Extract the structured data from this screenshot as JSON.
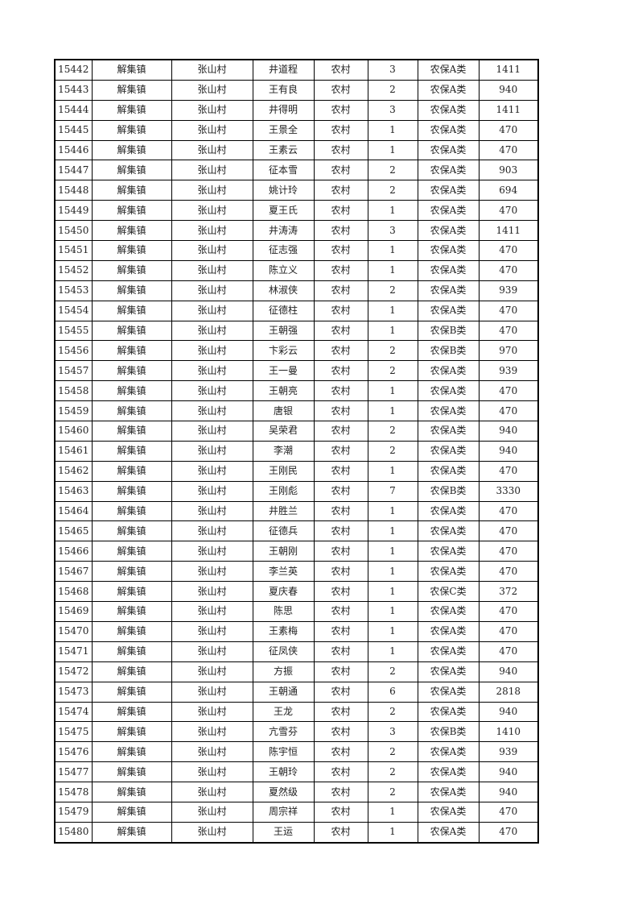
{
  "table": {
    "rows": [
      [
        "15442",
        "解集镇",
        "张山村",
        "井道程",
        "农村",
        "3",
        "农保A类",
        "1411"
      ],
      [
        "15443",
        "解集镇",
        "张山村",
        "王有良",
        "农村",
        "2",
        "农保A类",
        "940"
      ],
      [
        "15444",
        "解集镇",
        "张山村",
        "井得明",
        "农村",
        "3",
        "农保A类",
        "1411"
      ],
      [
        "15445",
        "解集镇",
        "张山村",
        "王景全",
        "农村",
        "1",
        "农保A类",
        "470"
      ],
      [
        "15446",
        "解集镇",
        "张山村",
        "王素云",
        "农村",
        "1",
        "农保A类",
        "470"
      ],
      [
        "15447",
        "解集镇",
        "张山村",
        "征本雪",
        "农村",
        "2",
        "农保A类",
        "903"
      ],
      [
        "15448",
        "解集镇",
        "张山村",
        "姚计玲",
        "农村",
        "2",
        "农保A类",
        "694"
      ],
      [
        "15449",
        "解集镇",
        "张山村",
        "夏王氏",
        "农村",
        "1",
        "农保A类",
        "470"
      ],
      [
        "15450",
        "解集镇",
        "张山村",
        "井涛涛",
        "农村",
        "3",
        "农保A类",
        "1411"
      ],
      [
        "15451",
        "解集镇",
        "张山村",
        "征志强",
        "农村",
        "1",
        "农保A类",
        "470"
      ],
      [
        "15452",
        "解集镇",
        "张山村",
        "陈立义",
        "农村",
        "1",
        "农保A类",
        "470"
      ],
      [
        "15453",
        "解集镇",
        "张山村",
        "林淑侠",
        "农村",
        "2",
        "农保A类",
        "939"
      ],
      [
        "15454",
        "解集镇",
        "张山村",
        "征德柱",
        "农村",
        "1",
        "农保A类",
        "470"
      ],
      [
        "15455",
        "解集镇",
        "张山村",
        "王朝强",
        "农村",
        "1",
        "农保B类",
        "470"
      ],
      [
        "15456",
        "解集镇",
        "张山村",
        "卞彩云",
        "农村",
        "2",
        "农保B类",
        "970"
      ],
      [
        "15457",
        "解集镇",
        "张山村",
        "王一曼",
        "农村",
        "2",
        "农保A类",
        "939"
      ],
      [
        "15458",
        "解集镇",
        "张山村",
        "王朝亮",
        "农村",
        "1",
        "农保A类",
        "470"
      ],
      [
        "15459",
        "解集镇",
        "张山村",
        "唐银",
        "农村",
        "1",
        "农保A类",
        "470"
      ],
      [
        "15460",
        "解集镇",
        "张山村",
        "吴荣君",
        "农村",
        "2",
        "农保A类",
        "940"
      ],
      [
        "15461",
        "解集镇",
        "张山村",
        "李潮",
        "农村",
        "2",
        "农保A类",
        "940"
      ],
      [
        "15462",
        "解集镇",
        "张山村",
        "王刚民",
        "农村",
        "1",
        "农保A类",
        "470"
      ],
      [
        "15463",
        "解集镇",
        "张山村",
        "王刚彪",
        "农村",
        "7",
        "农保B类",
        "3330"
      ],
      [
        "15464",
        "解集镇",
        "张山村",
        "井胜兰",
        "农村",
        "1",
        "农保A类",
        "470"
      ],
      [
        "15465",
        "解集镇",
        "张山村",
        "征德兵",
        "农村",
        "1",
        "农保A类",
        "470"
      ],
      [
        "15466",
        "解集镇",
        "张山村",
        "王朝刚",
        "农村",
        "1",
        "农保A类",
        "470"
      ],
      [
        "15467",
        "解集镇",
        "张山村",
        "李兰英",
        "农村",
        "1",
        "农保A类",
        "470"
      ],
      [
        "15468",
        "解集镇",
        "张山村",
        "夏庆春",
        "农村",
        "1",
        "农保C类",
        "372"
      ],
      [
        "15469",
        "解集镇",
        "张山村",
        "陈思",
        "农村",
        "1",
        "农保A类",
        "470"
      ],
      [
        "15470",
        "解集镇",
        "张山村",
        "王素梅",
        "农村",
        "1",
        "农保A类",
        "470"
      ],
      [
        "15471",
        "解集镇",
        "张山村",
        "征凤侠",
        "农村",
        "1",
        "农保A类",
        "470"
      ],
      [
        "15472",
        "解集镇",
        "张山村",
        "方振",
        "农村",
        "2",
        "农保A类",
        "940"
      ],
      [
        "15473",
        "解集镇",
        "张山村",
        "王朝通",
        "农村",
        "6",
        "农保A类",
        "2818"
      ],
      [
        "15474",
        "解集镇",
        "张山村",
        "王龙",
        "农村",
        "2",
        "农保A类",
        "940"
      ],
      [
        "15475",
        "解集镇",
        "张山村",
        "亢雪芬",
        "农村",
        "3",
        "农保B类",
        "1410"
      ],
      [
        "15476",
        "解集镇",
        "张山村",
        "陈宇恒",
        "农村",
        "2",
        "农保A类",
        "939"
      ],
      [
        "15477",
        "解集镇",
        "张山村",
        "王朝玲",
        "农村",
        "2",
        "农保A类",
        "940"
      ],
      [
        "15478",
        "解集镇",
        "张山村",
        "夏然级",
        "农村",
        "2",
        "农保A类",
        "940"
      ],
      [
        "15479",
        "解集镇",
        "张山村",
        "周宗祥",
        "农村",
        "1",
        "农保A类",
        "470"
      ],
      [
        "15480",
        "解集镇",
        "张山村",
        "王运",
        "农村",
        "1",
        "农保A类",
        "470"
      ]
    ]
  }
}
